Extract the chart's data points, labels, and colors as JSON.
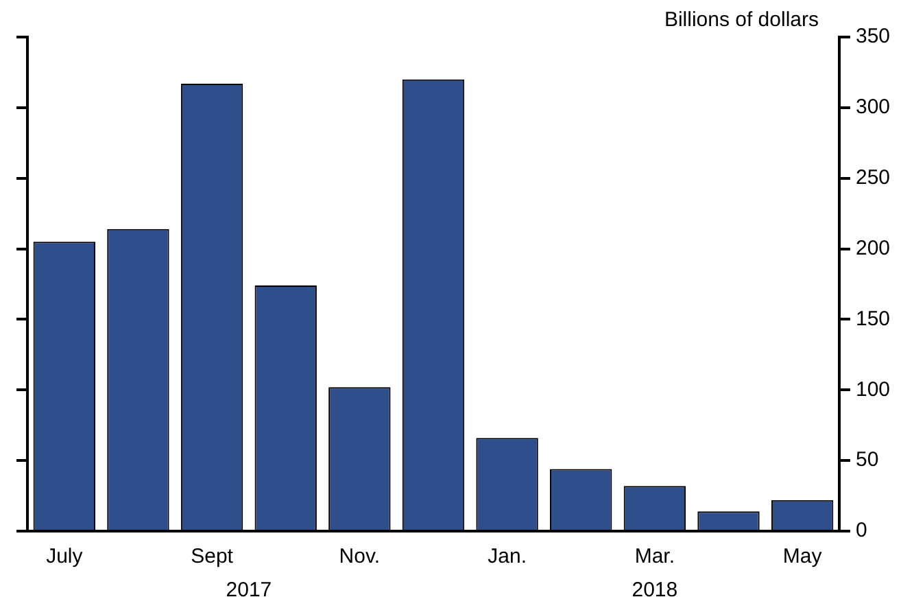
{
  "chart_data": {
    "type": "bar",
    "ylabel": "Billions of dollars",
    "categories": [
      "July",
      null,
      "Sept",
      null,
      "Nov.",
      null,
      "Jan.",
      null,
      "Mar.",
      null,
      "May"
    ],
    "values": [
      205,
      214,
      317,
      174,
      102,
      320,
      66,
      44,
      32,
      14,
      22
    ],
    "color": "#2e4f8c",
    "ylim": [
      0,
      350
    ],
    "yticks": [
      0,
      50,
      100,
      150,
      200,
      250,
      300,
      350
    ],
    "annotations": [
      "2017",
      "2018"
    ],
    "grid": false,
    "legend": false
  }
}
